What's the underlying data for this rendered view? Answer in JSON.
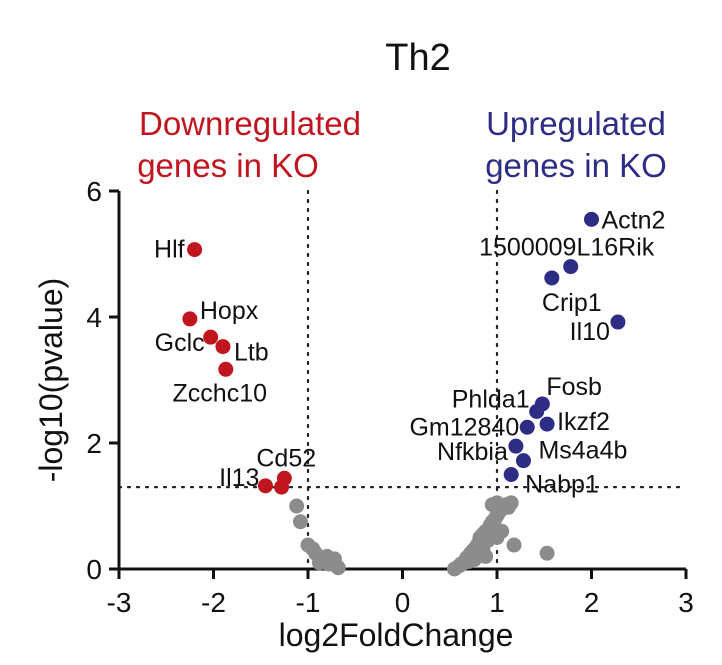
{
  "chart_data": {
    "type": "scatter",
    "title": "Th2",
    "xlabel": "log2FoldChange",
    "ylabel": "-log10(pvalue)",
    "xlim": [
      -3,
      3
    ],
    "ylim": [
      0,
      6
    ],
    "xticks": [
      -3,
      -2,
      -1,
      0,
      1,
      2,
      3
    ],
    "yticks": [
      0,
      2,
      4,
      6
    ],
    "grid": false,
    "threshold_lines": {
      "x": [
        -1,
        1
      ],
      "y": 1.3
    },
    "annotations": {
      "down": {
        "line1": "Downregulated",
        "line2": "genes in KO",
        "color": "#c0151f"
      },
      "up": {
        "line1": "Upregulated",
        "line2": "genes in KO",
        "color": "#2e2d86"
      }
    },
    "colors": {
      "down": "#c0151f",
      "up": "#2e2d86",
      "ns": "#8c8c8c"
    },
    "series": [
      {
        "group": "down",
        "points": [
          {
            "label": "Hlf",
            "x": -2.2,
            "y": 5.07
          },
          {
            "label": "Hopx",
            "x": -2.25,
            "y": 3.97
          },
          {
            "label": "Gclc",
            "x": -2.03,
            "y": 3.68
          },
          {
            "label": "Ltb",
            "x": -1.9,
            "y": 3.53
          },
          {
            "label": "Zcchc10",
            "x": -1.87,
            "y": 3.17
          },
          {
            "label": "Cd52",
            "x": -1.25,
            "y": 1.44
          },
          {
            "label": "Il13",
            "x": -1.45,
            "y": 1.32
          },
          {
            "label": "",
            "x": -1.28,
            "y": 1.3
          }
        ]
      },
      {
        "group": "up",
        "points": [
          {
            "label": "Actn2",
            "x": 2.0,
            "y": 5.55
          },
          {
            "label": "1500009L16Rik",
            "x": 1.78,
            "y": 4.8
          },
          {
            "label": "Crip1",
            "x": 1.58,
            "y": 4.62
          },
          {
            "label": "Il10",
            "x": 2.28,
            "y": 3.92
          },
          {
            "label": "Fosb",
            "x": 1.48,
            "y": 2.62
          },
          {
            "label": "Phlda1",
            "x": 1.42,
            "y": 2.5
          },
          {
            "label": "Ikzf2",
            "x": 1.53,
            "y": 2.3
          },
          {
            "label": "Gm12840",
            "x": 1.32,
            "y": 2.25
          },
          {
            "label": "Nfkbia",
            "x": 1.2,
            "y": 1.95
          },
          {
            "label": "Ms4a4b",
            "x": 1.28,
            "y": 1.72
          },
          {
            "label": "Nabp1",
            "x": 1.15,
            "y": 1.5
          }
        ]
      },
      {
        "group": "ns",
        "points": [
          {
            "x": -1.12,
            "y": 1.0
          },
          {
            "x": -1.08,
            "y": 0.75
          },
          {
            "x": -1.0,
            "y": 0.38
          },
          {
            "x": -0.95,
            "y": 0.32
          },
          {
            "x": -0.92,
            "y": 0.25
          },
          {
            "x": -0.8,
            "y": 0.2
          },
          {
            "x": -0.72,
            "y": 0.16
          },
          {
            "x": -0.7,
            "y": 0.05
          },
          {
            "x": -0.88,
            "y": 0.1
          },
          {
            "x": -0.78,
            "y": 0.08
          },
          {
            "x": -0.68,
            "y": 0.02
          },
          {
            "x": 0.55,
            "y": 0.0
          },
          {
            "x": 0.6,
            "y": 0.05
          },
          {
            "x": 0.65,
            "y": 0.1
          },
          {
            "x": 0.68,
            "y": 0.18
          },
          {
            "x": 0.72,
            "y": 0.25
          },
          {
            "x": 0.75,
            "y": 0.3
          },
          {
            "x": 0.78,
            "y": 0.35
          },
          {
            "x": 0.8,
            "y": 0.4
          },
          {
            "x": 0.82,
            "y": 0.5
          },
          {
            "x": 0.85,
            "y": 0.55
          },
          {
            "x": 0.88,
            "y": 0.6
          },
          {
            "x": 0.9,
            "y": 0.62
          },
          {
            "x": 0.93,
            "y": 0.7
          },
          {
            "x": 0.95,
            "y": 0.75
          },
          {
            "x": 0.98,
            "y": 0.8
          },
          {
            "x": 1.0,
            "y": 0.85
          },
          {
            "x": 1.02,
            "y": 0.9
          },
          {
            "x": 1.05,
            "y": 0.95
          },
          {
            "x": 1.08,
            "y": 1.0
          },
          {
            "x": 1.1,
            "y": 1.02
          },
          {
            "x": 1.12,
            "y": 0.98
          },
          {
            "x": 1.15,
            "y": 1.05
          },
          {
            "x": 0.9,
            "y": 0.45
          },
          {
            "x": 0.85,
            "y": 0.3
          },
          {
            "x": 0.7,
            "y": 0.12
          },
          {
            "x": 0.62,
            "y": 0.08
          },
          {
            "x": 1.0,
            "y": 0.5
          },
          {
            "x": 1.18,
            "y": 0.38
          },
          {
            "x": 0.95,
            "y": 1.02
          },
          {
            "x": 1.0,
            "y": 1.05
          },
          {
            "x": 0.88,
            "y": 0.2
          },
          {
            "x": 0.76,
            "y": 0.15
          },
          {
            "x": 1.05,
            "y": 0.6
          },
          {
            "x": 1.53,
            "y": 0.25
          }
        ]
      }
    ]
  }
}
